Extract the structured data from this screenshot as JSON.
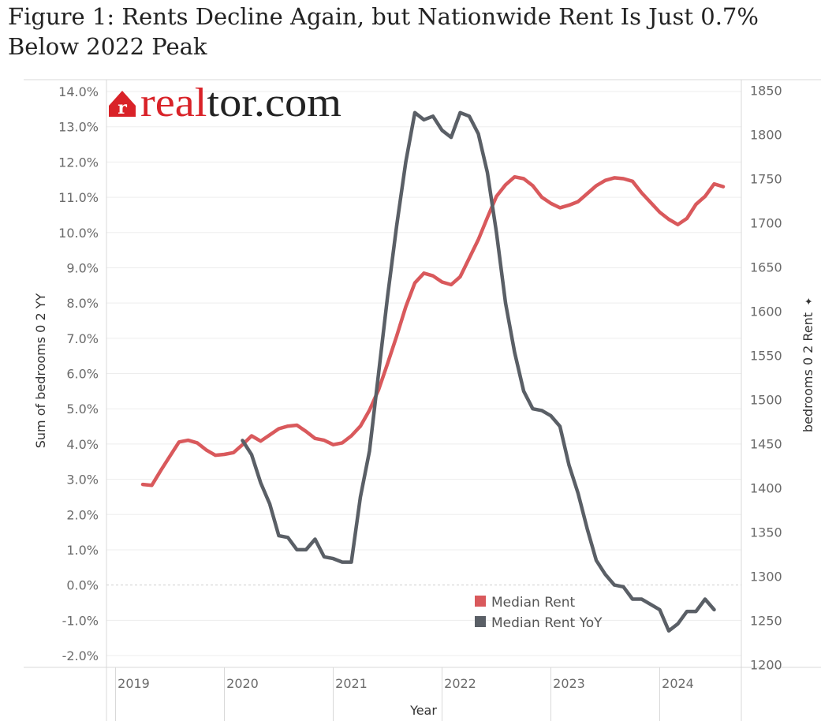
{
  "title": "Figure 1: Rents Decline Again, but Nationwide Rent Is Just 0.7% Below 2022 Peak",
  "logo": {
    "name": "realtor.com",
    "accent": "#D92228",
    "text_color": "#222222",
    "icon": "house-r-logo-icon"
  },
  "colors": {
    "median_rent": "#D9595C",
    "median_rent_yoy": "#5A5F66",
    "grid": "#EDEDED",
    "frame": "#D9D9D9"
  },
  "chart_data": {
    "type": "line",
    "xlabel": "Year",
    "ylabel_left": "Sum of bedrooms 0 2 YY",
    "ylabel_right": "bedrooms 0 2 Rent",
    "right_axis_marker": "✦",
    "x_ticks": [
      "2019",
      "2020",
      "2021",
      "2022",
      "2023",
      "2024"
    ],
    "y_left_ticks": [
      "14.0%",
      "13.0%",
      "12.0%",
      "11.0%",
      "10.0%",
      "9.0%",
      "8.0%",
      "7.0%",
      "6.0%",
      "5.0%",
      "4.0%",
      "3.0%",
      "2.0%",
      "1.0%",
      "0.0%",
      "-1.0%",
      "-2.0%"
    ],
    "y_right_ticks": [
      "1850",
      "1800",
      "1750",
      "1700",
      "1650",
      "1600",
      "1550",
      "1500",
      "1450",
      "1400",
      "1350",
      "1300",
      "1250",
      "1200"
    ],
    "x_range": [
      "2018-12",
      "2024-10"
    ],
    "y_left_range": [
      -2.0,
      14.0
    ],
    "y_right_range": [
      1197,
      1862
    ],
    "grid": true,
    "legend_position": "bottom-right",
    "series": [
      {
        "name": "Median Rent",
        "axis": "right",
        "points": [
          [
            "2019-04",
            1404
          ],
          [
            "2019-05",
            1403
          ],
          [
            "2019-06",
            1420
          ],
          [
            "2019-07",
            1436
          ],
          [
            "2019-08",
            1452
          ],
          [
            "2019-09",
            1454
          ],
          [
            "2019-10",
            1451
          ],
          [
            "2019-11",
            1443
          ],
          [
            "2019-12",
            1437
          ],
          [
            "2020-01",
            1438
          ],
          [
            "2020-02",
            1440
          ],
          [
            "2020-03",
            1449
          ],
          [
            "2020-04",
            1459
          ],
          [
            "2020-05",
            1453
          ],
          [
            "2020-06",
            1460
          ],
          [
            "2020-07",
            1467
          ],
          [
            "2020-08",
            1470
          ],
          [
            "2020-09",
            1471
          ],
          [
            "2020-10",
            1464
          ],
          [
            "2020-11",
            1456
          ],
          [
            "2020-12",
            1454
          ],
          [
            "2021-01",
            1449
          ],
          [
            "2021-02",
            1451
          ],
          [
            "2021-03",
            1459
          ],
          [
            "2021-04",
            1470
          ],
          [
            "2021-05",
            1488
          ],
          [
            "2021-06",
            1511
          ],
          [
            "2021-07",
            1541
          ],
          [
            "2021-08",
            1572
          ],
          [
            "2021-09",
            1605
          ],
          [
            "2021-10",
            1632
          ],
          [
            "2021-11",
            1643
          ],
          [
            "2021-12",
            1640
          ],
          [
            "2022-01",
            1633
          ],
          [
            "2022-02",
            1630
          ],
          [
            "2022-03",
            1639
          ],
          [
            "2022-04",
            1660
          ],
          [
            "2022-05",
            1681
          ],
          [
            "2022-06",
            1706
          ],
          [
            "2022-07",
            1730
          ],
          [
            "2022-08",
            1743
          ],
          [
            "2022-09",
            1752
          ],
          [
            "2022-10",
            1750
          ],
          [
            "2022-11",
            1742
          ],
          [
            "2022-12",
            1729
          ],
          [
            "2023-01",
            1722
          ],
          [
            "2023-02",
            1717
          ],
          [
            "2023-03",
            1720
          ],
          [
            "2023-04",
            1724
          ],
          [
            "2023-05",
            1733
          ],
          [
            "2023-06",
            1742
          ],
          [
            "2023-07",
            1748
          ],
          [
            "2023-08",
            1751
          ],
          [
            "2023-09",
            1750
          ],
          [
            "2023-10",
            1747
          ],
          [
            "2023-11",
            1734
          ],
          [
            "2023-12",
            1723
          ],
          [
            "2024-01",
            1712
          ],
          [
            "2024-02",
            1704
          ],
          [
            "2024-03",
            1698
          ],
          [
            "2024-04",
            1705
          ],
          [
            "2024-05",
            1721
          ],
          [
            "2024-06",
            1730
          ],
          [
            "2024-07",
            1744
          ],
          [
            "2024-08",
            1741
          ]
        ]
      },
      {
        "name": "Median Rent YoY",
        "axis": "left",
        "points": [
          [
            "2020-03",
            4.1
          ],
          [
            "2020-04",
            3.7
          ],
          [
            "2020-05",
            2.9
          ],
          [
            "2020-06",
            2.3
          ],
          [
            "2020-07",
            1.4
          ],
          [
            "2020-08",
            1.35
          ],
          [
            "2020-09",
            1.0
          ],
          [
            "2020-10",
            1.0
          ],
          [
            "2020-11",
            1.3
          ],
          [
            "2020-12",
            0.8
          ],
          [
            "2021-01",
            0.75
          ],
          [
            "2021-02",
            0.65
          ],
          [
            "2021-03",
            0.65
          ],
          [
            "2021-04",
            2.5
          ],
          [
            "2021-05",
            3.8
          ],
          [
            "2021-06",
            6.0
          ],
          [
            "2021-07",
            8.2
          ],
          [
            "2021-08",
            10.2
          ],
          [
            "2021-09",
            12.0
          ],
          [
            "2021-10",
            13.4
          ],
          [
            "2021-11",
            13.2
          ],
          [
            "2021-12",
            13.3
          ],
          [
            "2022-01",
            12.9
          ],
          [
            "2022-02",
            12.7
          ],
          [
            "2022-03",
            13.4
          ],
          [
            "2022-04",
            13.3
          ],
          [
            "2022-05",
            12.8
          ],
          [
            "2022-06",
            11.7
          ],
          [
            "2022-07",
            10.0
          ],
          [
            "2022-08",
            8.0
          ],
          [
            "2022-09",
            6.6
          ],
          [
            "2022-10",
            5.5
          ],
          [
            "2022-11",
            5.0
          ],
          [
            "2022-12",
            4.95
          ],
          [
            "2023-01",
            4.8
          ],
          [
            "2023-02",
            4.5
          ],
          [
            "2023-03",
            3.4
          ],
          [
            "2023-04",
            2.6
          ],
          [
            "2023-05",
            1.6
          ],
          [
            "2023-06",
            0.7
          ],
          [
            "2023-07",
            0.3
          ],
          [
            "2023-08",
            0.0
          ],
          [
            "2023-09",
            -0.05
          ],
          [
            "2023-10",
            -0.4
          ],
          [
            "2023-11",
            -0.4
          ],
          [
            "2023-12",
            -0.55
          ],
          [
            "2024-01",
            -0.7
          ],
          [
            "2024-02",
            -1.3
          ],
          [
            "2024-03",
            -1.1
          ],
          [
            "2024-04",
            -0.75
          ],
          [
            "2024-05",
            -0.75
          ],
          [
            "2024-06",
            -0.4
          ],
          [
            "2024-07",
            -0.7
          ]
        ]
      }
    ]
  }
}
